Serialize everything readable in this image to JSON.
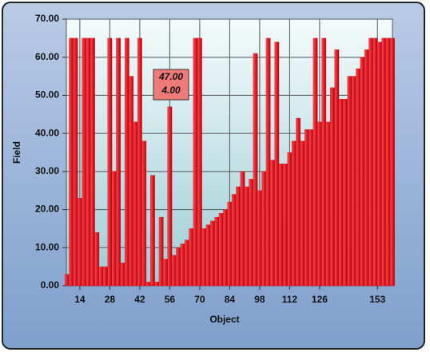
{
  "chart_data": {
    "type": "bar",
    "xlabel": "Object",
    "ylabel": "Field",
    "color": "#e0101c",
    "x": [
      8,
      10,
      12,
      14,
      16,
      18,
      20,
      22,
      24,
      26,
      28,
      30,
      32,
      34,
      36,
      38,
      40,
      42,
      44,
      46,
      48,
      50,
      52,
      54,
      56,
      58,
      60,
      62,
      64,
      66,
      68,
      70,
      72,
      74,
      76,
      78,
      80,
      82,
      84,
      86,
      88,
      90,
      92,
      94,
      96,
      98,
      100,
      102,
      104,
      106,
      108,
      110,
      112,
      114,
      116,
      118,
      120,
      122,
      124,
      126,
      128,
      130,
      132,
      134,
      136,
      138,
      140,
      142,
      144,
      146,
      148,
      150,
      152,
      154,
      156,
      158,
      160
    ],
    "values": [
      3,
      65,
      65,
      23,
      65,
      65,
      65,
      14,
      5,
      5,
      65,
      30,
      65,
      6,
      65,
      55,
      43,
      65,
      38,
      1,
      29,
      1,
      18,
      7,
      47,
      8,
      10,
      11,
      12,
      15,
      65,
      65,
      15,
      16,
      17,
      18,
      19,
      20,
      22,
      24,
      26,
      30,
      26,
      28,
      61,
      25,
      30,
      65,
      33,
      64,
      32,
      32,
      35,
      38,
      44,
      38,
      41,
      41,
      65,
      43,
      65,
      43,
      52,
      62,
      49,
      49,
      55,
      55,
      57,
      60,
      62,
      65,
      65,
      64,
      65,
      65,
      65
    ],
    "xlim": [
      7.7,
      160
    ],
    "xticks": [
      14,
      28,
      42,
      56,
      70,
      84,
      98,
      112,
      126,
      153
    ],
    "ylim": [
      0,
      70
    ],
    "yticks": [
      {
        "value": 0,
        "label": "0.00"
      },
      {
        "value": 10,
        "label": "10.00"
      },
      {
        "value": 20,
        "label": "20.00"
      },
      {
        "value": 30,
        "label": "30.00"
      },
      {
        "value": 40,
        "label": "40.00"
      },
      {
        "value": 50,
        "label": "50.00"
      },
      {
        "value": 60,
        "label": "60.00"
      },
      {
        "value": 70,
        "label": "70.00"
      }
    ],
    "grid": true,
    "tooltip": {
      "lines": [
        "47.00",
        "4.00"
      ]
    }
  }
}
